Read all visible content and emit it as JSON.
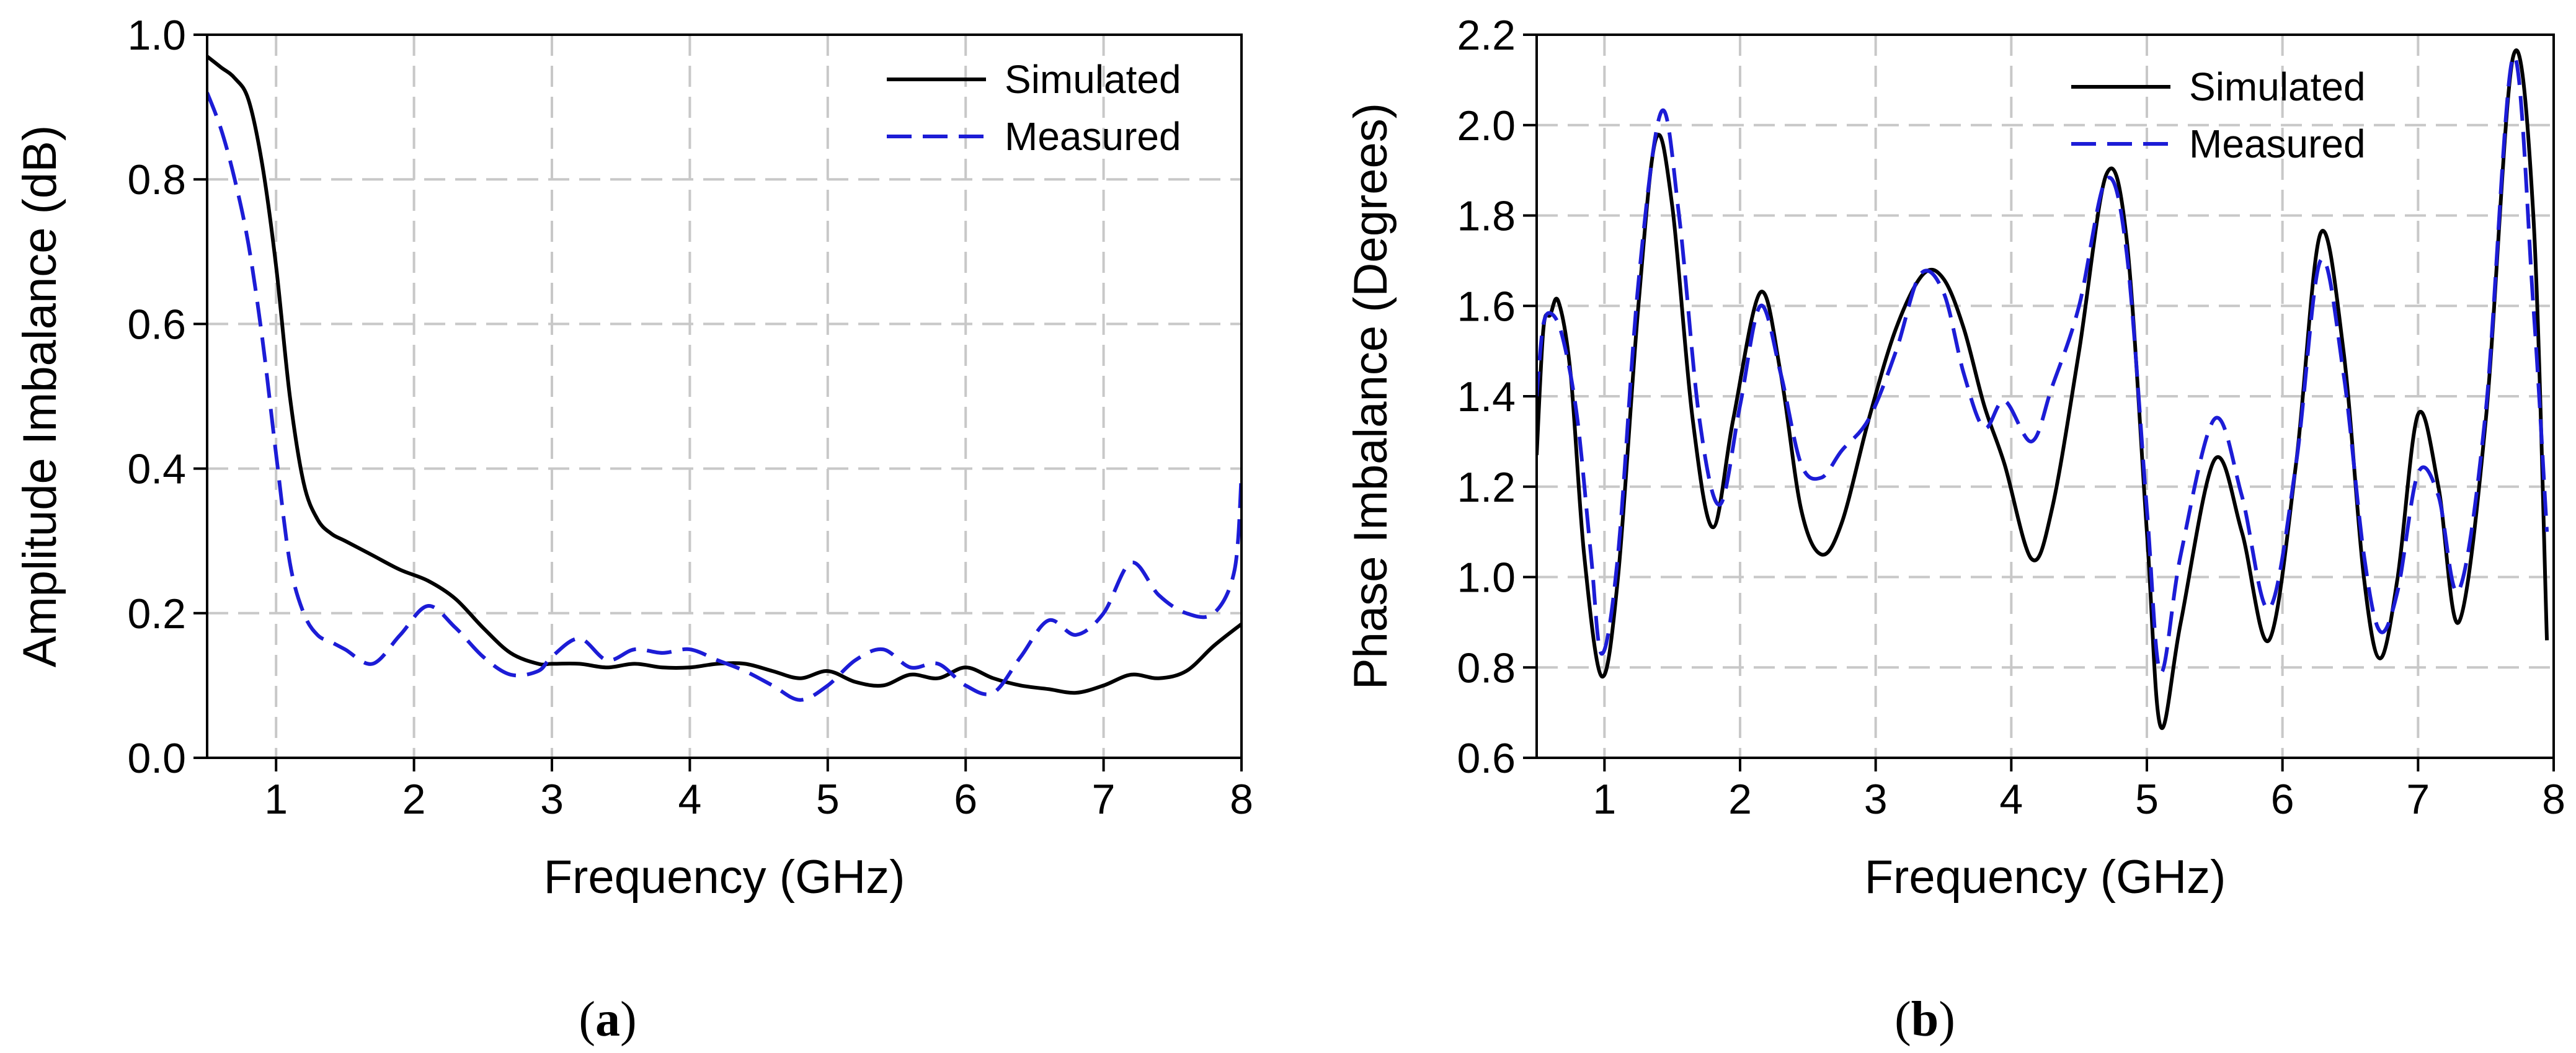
{
  "panels": [
    {
      "label_open": "(",
      "label_letter": "a",
      "label_close": ")"
    },
    {
      "label_open": "(",
      "label_letter": "b",
      "label_close": ")"
    }
  ],
  "colors": {
    "simulated": "#000000",
    "measured": "#1c1cd6",
    "grid": "#c8c8c8"
  },
  "chart_data": [
    {
      "type": "line",
      "xlabel": "Frequency (GHz)",
      "ylabel": "Amplitude Imbalance (dB)",
      "xlim": [
        0.5,
        8
      ],
      "ylim": [
        0.0,
        1.0
      ],
      "xticks": [
        1,
        2,
        3,
        4,
        5,
        6,
        7,
        8
      ],
      "xtick_labels": [
        "1",
        "2",
        "3",
        "4",
        "5",
        "6",
        "7",
        "8"
      ],
      "yticks": [
        0.0,
        0.2,
        0.4,
        0.6,
        0.8,
        1.0
      ],
      "ytick_labels": [
        "0.0",
        "0.2",
        "0.4",
        "0.6",
        "0.8",
        "1.0"
      ],
      "grid": true,
      "legend_position": "top-right",
      "series": [
        {
          "name": "Simulated",
          "style": "solid",
          "x": [
            0.5,
            0.6,
            0.7,
            0.8,
            0.9,
            1.0,
            1.1,
            1.2,
            1.3,
            1.4,
            1.5,
            1.7,
            1.9,
            2.1,
            2.3,
            2.5,
            2.7,
            2.9,
            3.0,
            3.2,
            3.4,
            3.6,
            3.8,
            4.0,
            4.2,
            4.4,
            4.6,
            4.8,
            5.0,
            5.2,
            5.4,
            5.6,
            5.8,
            6.0,
            6.2,
            6.4,
            6.6,
            6.8,
            7.0,
            7.2,
            7.4,
            7.6,
            7.8,
            8.0
          ],
          "y": [
            0.97,
            0.955,
            0.94,
            0.91,
            0.82,
            0.68,
            0.5,
            0.38,
            0.33,
            0.31,
            0.3,
            0.28,
            0.26,
            0.245,
            0.22,
            0.18,
            0.145,
            0.13,
            0.13,
            0.13,
            0.125,
            0.13,
            0.125,
            0.125,
            0.13,
            0.13,
            0.12,
            0.11,
            0.12,
            0.105,
            0.1,
            0.115,
            0.11,
            0.125,
            0.11,
            0.1,
            0.095,
            0.09,
            0.1,
            0.115,
            0.11,
            0.12,
            0.155,
            0.185
          ]
        },
        {
          "name": "Measured",
          "style": "dashed",
          "x": [
            0.5,
            0.6,
            0.7,
            0.8,
            0.9,
            1.0,
            1.1,
            1.2,
            1.3,
            1.4,
            1.5,
            1.7,
            1.9,
            2.1,
            2.3,
            2.5,
            2.7,
            2.9,
            3.0,
            3.2,
            3.4,
            3.6,
            3.8,
            4.0,
            4.2,
            4.4,
            4.6,
            4.8,
            5.0,
            5.2,
            5.4,
            5.6,
            5.8,
            6.0,
            6.2,
            6.4,
            6.6,
            6.8,
            7.0,
            7.2,
            7.4,
            7.6,
            7.8,
            7.95,
            8.0
          ],
          "y": [
            0.92,
            0.87,
            0.8,
            0.71,
            0.58,
            0.42,
            0.27,
            0.2,
            0.17,
            0.16,
            0.15,
            0.13,
            0.17,
            0.21,
            0.18,
            0.14,
            0.115,
            0.12,
            0.14,
            0.165,
            0.135,
            0.15,
            0.145,
            0.15,
            0.135,
            0.12,
            0.1,
            0.08,
            0.1,
            0.135,
            0.15,
            0.125,
            0.13,
            0.1,
            0.09,
            0.14,
            0.19,
            0.17,
            0.2,
            0.27,
            0.225,
            0.2,
            0.2,
            0.26,
            0.39
          ]
        }
      ]
    },
    {
      "type": "line",
      "xlabel": "Frequency (GHz)",
      "ylabel": "Phase Imbalance (Degrees)",
      "xlim": [
        0.5,
        8
      ],
      "ylim": [
        0.6,
        2.2
      ],
      "xticks": [
        1,
        2,
        3,
        4,
        5,
        6,
        7,
        8
      ],
      "xtick_labels": [
        "1",
        "2",
        "3",
        "4",
        "5",
        "6",
        "7",
        "8"
      ],
      "yticks": [
        0.6,
        0.8,
        1.0,
        1.2,
        1.4,
        1.6,
        1.8,
        2.0,
        2.2
      ],
      "ytick_labels": [
        "0.6",
        "0.8",
        "1.0",
        "1.2",
        "1.4",
        "1.6",
        "1.8",
        "2.0",
        "2.2"
      ],
      "grid": true,
      "legend_position": "top-right",
      "series": [
        {
          "name": "Simulated",
          "style": "solid",
          "x": [
            0.5,
            0.55,
            0.6,
            0.66,
            0.75,
            0.85,
            0.98,
            1.1,
            1.25,
            1.38,
            1.5,
            1.65,
            1.8,
            1.95,
            2.15,
            2.3,
            2.45,
            2.6,
            2.75,
            2.95,
            3.15,
            3.35,
            3.5,
            3.65,
            3.8,
            3.95,
            4.15,
            4.3,
            4.5,
            4.7,
            4.85,
            5.0,
            5.1,
            5.25,
            5.5,
            5.7,
            5.9,
            6.1,
            6.28,
            6.45,
            6.6,
            6.72,
            6.85,
            7.0,
            7.15,
            7.3,
            7.5,
            7.7,
            7.85,
            7.95
          ],
          "y": [
            1.27,
            1.55,
            1.58,
            1.61,
            1.45,
            1.05,
            0.78,
            1.0,
            1.6,
            1.97,
            1.82,
            1.35,
            1.11,
            1.35,
            1.63,
            1.45,
            1.15,
            1.05,
            1.12,
            1.35,
            1.55,
            1.67,
            1.66,
            1.55,
            1.38,
            1.25,
            1.04,
            1.15,
            1.5,
            1.89,
            1.75,
            1.1,
            0.67,
            0.9,
            1.26,
            1.1,
            0.86,
            1.25,
            1.76,
            1.5,
            1.0,
            0.82,
            1.0,
            1.36,
            1.2,
            0.9,
            1.35,
            2.15,
            1.8,
            0.86
          ]
        },
        {
          "name": "Measured",
          "style": "dashed",
          "x": [
            0.5,
            0.55,
            0.62,
            0.7,
            0.8,
            0.9,
            0.98,
            1.1,
            1.25,
            1.42,
            1.55,
            1.7,
            1.85,
            2.0,
            2.15,
            2.3,
            2.45,
            2.6,
            2.75,
            2.95,
            3.15,
            3.33,
            3.5,
            3.65,
            3.8,
            3.95,
            4.15,
            4.3,
            4.5,
            4.7,
            4.85,
            5.0,
            5.1,
            5.25,
            5.5,
            5.7,
            5.9,
            6.1,
            6.28,
            6.45,
            6.6,
            6.72,
            6.85,
            7.0,
            7.15,
            7.3,
            7.5,
            7.7,
            7.85,
            7.95
          ],
          "y": [
            1.4,
            1.56,
            1.58,
            1.52,
            1.35,
            1.05,
            0.83,
            1.05,
            1.65,
            2.03,
            1.8,
            1.35,
            1.16,
            1.38,
            1.6,
            1.45,
            1.25,
            1.22,
            1.28,
            1.35,
            1.5,
            1.67,
            1.63,
            1.45,
            1.33,
            1.39,
            1.3,
            1.42,
            1.6,
            1.88,
            1.72,
            1.15,
            0.79,
            1.05,
            1.35,
            1.18,
            0.93,
            1.25,
            1.7,
            1.45,
            1.05,
            0.88,
            0.97,
            1.23,
            1.18,
            0.97,
            1.37,
            2.15,
            1.6,
            1.1
          ]
        }
      ]
    }
  ]
}
